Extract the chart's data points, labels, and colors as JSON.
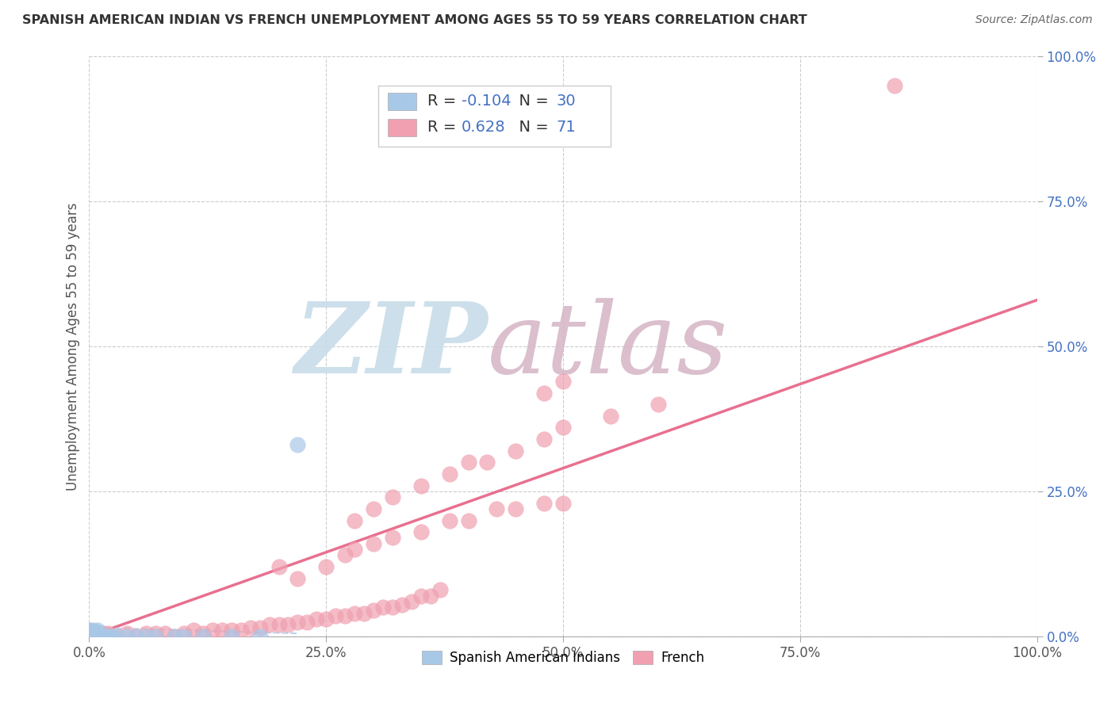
{
  "title": "SPANISH AMERICAN INDIAN VS FRENCH UNEMPLOYMENT AMONG AGES 55 TO 59 YEARS CORRELATION CHART",
  "source": "Source: ZipAtlas.com",
  "ylabel": "Unemployment Among Ages 55 to 59 years",
  "xmin": 0.0,
  "xmax": 1.0,
  "ymin": 0.0,
  "ymax": 1.0,
  "x_ticks": [
    0.0,
    0.25,
    0.5,
    0.75,
    1.0
  ],
  "x_tick_labels": [
    "0.0%",
    "25.0%",
    "50.0%",
    "75.0%",
    "100.0%"
  ],
  "y_ticks_right": [
    0.0,
    0.25,
    0.5,
    0.75,
    1.0
  ],
  "y_tick_labels_right": [
    "0.0%",
    "25.0%",
    "50.0%",
    "75.0%",
    "100.0%"
  ],
  "series1_color": "#a8c8e8",
  "series2_color": "#f0a0b0",
  "trendline1_color": "#b8d4ee",
  "trendline2_color": "#e87090",
  "watermark_zip": "ZIP",
  "watermark_atlas": "atlas",
  "watermark_color_zip": "#c8dce8",
  "watermark_color_atlas": "#d8b8c8",
  "background_color": "#ffffff",
  "grid_color": "#cccccc",
  "r1": "-0.104",
  "n1": "30",
  "r2": "0.628",
  "n2": "71",
  "legend_bottom": [
    "Spanish American Indians",
    "French"
  ],
  "legend_bottom_colors": [
    "#a8c8e8",
    "#f0a0b0"
  ],
  "title_color": "#333333",
  "source_color": "#666666",
  "ylabel_color": "#555555",
  "tick_color": "#555555",
  "right_tick_color": "#4472c4",
  "legend_text_color": "#333333",
  "legend_num_color": "#4472c4",
  "series1_x": [
    0.0,
    0.0,
    0.0,
    0.001,
    0.002,
    0.003,
    0.004,
    0.005,
    0.006,
    0.007,
    0.008,
    0.009,
    0.01,
    0.012,
    0.014,
    0.016,
    0.018,
    0.02,
    0.025,
    0.03,
    0.04,
    0.05,
    0.06,
    0.07,
    0.09,
    0.1,
    0.12,
    0.15,
    0.18,
    0.22
  ],
  "series1_y": [
    0.0,
    0.005,
    0.01,
    0.0,
    0.005,
    0.005,
    0.01,
    0.005,
    0.005,
    0.008,
    0.008,
    0.01,
    0.0,
    0.0,
    0.0,
    0.0,
    0.0,
    0.0,
    0.0,
    0.0,
    0.0,
    0.0,
    0.0,
    0.0,
    0.0,
    0.0,
    0.0,
    0.0,
    0.0,
    0.33
  ],
  "series2_x": [
    0.0,
    0.0,
    0.0,
    0.005,
    0.01,
    0.015,
    0.02,
    0.03,
    0.04,
    0.05,
    0.06,
    0.07,
    0.08,
    0.09,
    0.1,
    0.11,
    0.12,
    0.13,
    0.14,
    0.15,
    0.16,
    0.17,
    0.18,
    0.19,
    0.2,
    0.21,
    0.22,
    0.23,
    0.24,
    0.25,
    0.26,
    0.27,
    0.28,
    0.29,
    0.3,
    0.31,
    0.32,
    0.33,
    0.34,
    0.35,
    0.36,
    0.37,
    0.2,
    0.22,
    0.25,
    0.27,
    0.28,
    0.3,
    0.32,
    0.35,
    0.38,
    0.4,
    0.43,
    0.45,
    0.48,
    0.5,
    0.28,
    0.3,
    0.32,
    0.35,
    0.38,
    0.4,
    0.42,
    0.45,
    0.48,
    0.5,
    0.55,
    0.6,
    0.48,
    0.5,
    0.85
  ],
  "series2_y": [
    0.0,
    0.005,
    0.01,
    0.0,
    0.0,
    0.005,
    0.005,
    0.0,
    0.005,
    0.0,
    0.005,
    0.005,
    0.005,
    0.0,
    0.005,
    0.01,
    0.005,
    0.01,
    0.01,
    0.01,
    0.01,
    0.015,
    0.015,
    0.02,
    0.02,
    0.02,
    0.025,
    0.025,
    0.03,
    0.03,
    0.035,
    0.035,
    0.04,
    0.04,
    0.045,
    0.05,
    0.05,
    0.055,
    0.06,
    0.07,
    0.07,
    0.08,
    0.12,
    0.1,
    0.12,
    0.14,
    0.15,
    0.16,
    0.17,
    0.18,
    0.2,
    0.2,
    0.22,
    0.22,
    0.23,
    0.23,
    0.2,
    0.22,
    0.24,
    0.26,
    0.28,
    0.3,
    0.3,
    0.32,
    0.34,
    0.36,
    0.38,
    0.4,
    0.42,
    0.44,
    0.95
  ],
  "trendline2_x": [
    0.0,
    1.0
  ],
  "trendline2_y": [
    0.0,
    0.58
  ],
  "trendline1_x": [
    0.0,
    0.22
  ],
  "trendline1_y": [
    0.015,
    0.005
  ]
}
